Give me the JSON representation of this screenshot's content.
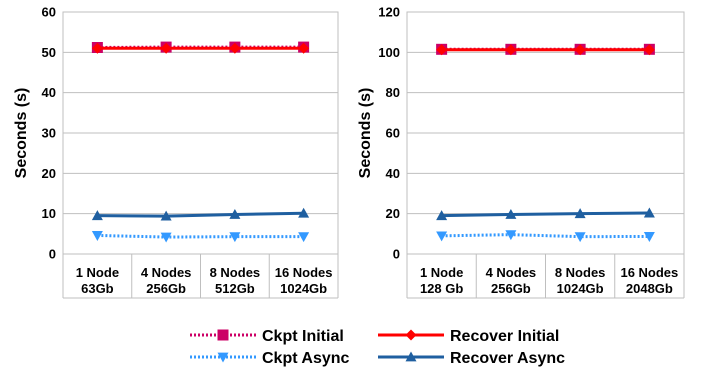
{
  "chart_data": [
    {
      "type": "line",
      "categories": [
        [
          "1 Node",
          "63Gb"
        ],
        [
          "4 Nodes",
          "256Gb"
        ],
        [
          "8 Nodes",
          "512Gb"
        ],
        [
          "16 Nodes",
          "1024Gb"
        ]
      ],
      "ylabel": "Seconds (s)",
      "ylim": [
        0,
        60
      ],
      "yticks": [
        0,
        10,
        20,
        30,
        40,
        50,
        60
      ],
      "grid": true,
      "series": [
        {
          "name": "Ckpt Initial",
          "values": [
            51.2,
            51.3,
            51.3,
            51.3
          ]
        },
        {
          "name": "Recover Initial",
          "values": [
            51.0,
            51.0,
            51.0,
            51.0
          ]
        },
        {
          "name": "Ckpt Async",
          "values": [
            4.6,
            4.2,
            4.3,
            4.3
          ]
        },
        {
          "name": "Recover Async",
          "values": [
            9.5,
            9.4,
            9.8,
            10.1
          ]
        }
      ]
    },
    {
      "type": "line",
      "categories": [
        [
          "1 Node",
          "128 Gb"
        ],
        [
          "4 Nodes",
          "256Gb"
        ],
        [
          "8 Nodes",
          "1024Gb"
        ],
        [
          "16 Nodes",
          "2048Gb"
        ]
      ],
      "ylabel": "Seconds (s)",
      "ylim": [
        0,
        120
      ],
      "yticks": [
        0,
        20,
        40,
        60,
        80,
        100,
        120
      ],
      "grid": true,
      "series": [
        {
          "name": "Ckpt Initial",
          "values": [
            101.5,
            101.5,
            101.5,
            101.5
          ]
        },
        {
          "name": "Recover Initial",
          "values": [
            101.3,
            101.3,
            101.3,
            101.3
          ]
        },
        {
          "name": "Ckpt Async",
          "values": [
            9.0,
            9.6,
            8.6,
            8.7
          ]
        },
        {
          "name": "Recover Async",
          "values": [
            19.0,
            19.6,
            20.0,
            20.3
          ]
        }
      ]
    }
  ],
  "legend": {
    "placement": "bottom",
    "items": [
      {
        "label": "Ckpt Initial",
        "color": "#cc0066",
        "marker": "square",
        "dash": "dotted"
      },
      {
        "label": "Recover Initial",
        "color": "#ff0000",
        "marker": "diamond",
        "dash": "solid"
      },
      {
        "label": "Ckpt Async",
        "color": "#3399ff",
        "marker": "triangle-down",
        "dash": "dotted"
      },
      {
        "label": "Recover Async",
        "color": "#1f5fa0",
        "marker": "triangle-up",
        "dash": "solid"
      }
    ]
  }
}
